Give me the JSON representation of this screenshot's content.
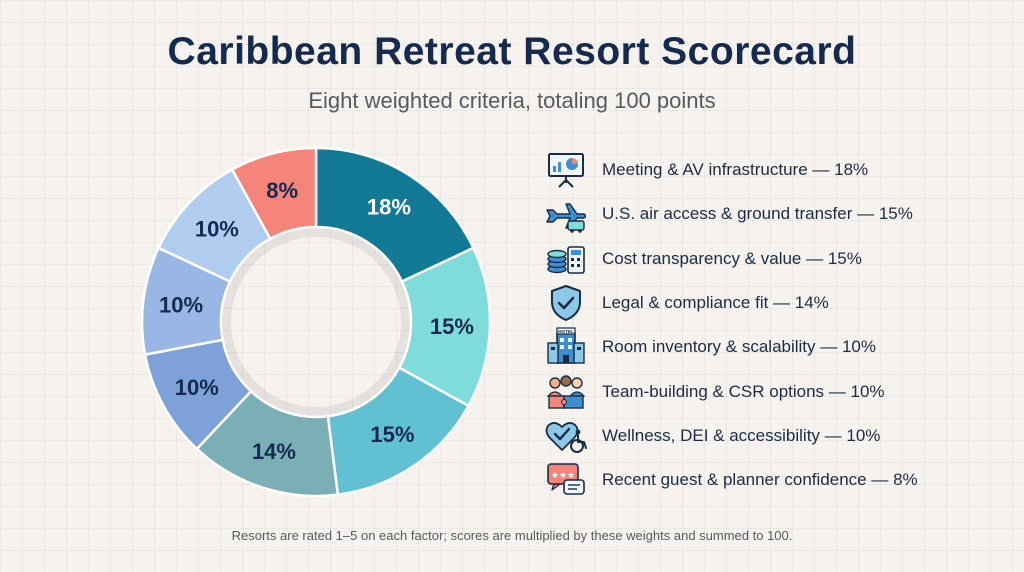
{
  "title": "Caribbean Retreat Resort Scorecard",
  "subtitle": "Eight weighted criteria, totaling 100 points",
  "footnote": "Resorts are rated 1–5 on each factor; scores are multiplied by these weights and summed to 100.",
  "chart_data": {
    "type": "pie",
    "variant": "donut",
    "title": "Caribbean Retreat Resort Scorecard",
    "subtitle": "Eight weighted criteria, totaling 100 points",
    "start": "top, clockwise",
    "slices": [
      {
        "name": "Meeting & AV infrastructure",
        "value": 18,
        "label": "18%",
        "color": "#137a95",
        "text_color": "#ffffff"
      },
      {
        "name": "U.S. air access & ground transfer",
        "value": 15,
        "label": "15%",
        "color": "#7fdcdb",
        "text_color": "#142a4f"
      },
      {
        "name": "Cost transparency & value",
        "value": 15,
        "label": "15%",
        "color": "#62c0d3",
        "text_color": "#142a4f"
      },
      {
        "name": "Legal & compliance fit",
        "value": 14,
        "label": "14%",
        "color": "#7aafb6",
        "text_color": "#142a4f"
      },
      {
        "name": "Room inventory & scalability",
        "value": 10,
        "label": "10%",
        "color": "#7da1d8",
        "text_color": "#142a4f"
      },
      {
        "name": "Team-building & CSR options",
        "value": 10,
        "label": "10%",
        "color": "#99b7e4",
        "text_color": "#142a4f"
      },
      {
        "name": "Wellness, DEI & accessibility",
        "value": 10,
        "label": "10%",
        "color": "#b0cdf0",
        "text_color": "#142a4f"
      },
      {
        "name": "Recent guest & planner confidence",
        "value": 8,
        "label": "8%",
        "color": "#f5847a",
        "text_color": "#142a4f"
      }
    ]
  },
  "legend": [
    {
      "text": "Meeting & AV infrastructure — 18%",
      "icon": "presentation-board-icon"
    },
    {
      "text": "U.S. air access & ground transfer — 15%",
      "icon": "airplane-shuttle-icon"
    },
    {
      "text": "Cost transparency & value — 15%",
      "icon": "coins-calculator-icon"
    },
    {
      "text": "Legal & compliance fit — 14%",
      "icon": "shield-check-icon"
    },
    {
      "text": "Room inventory & scalability — 10%",
      "icon": "hotel-building-icon"
    },
    {
      "text": "Team-building & CSR options — 10%",
      "icon": "team-puzzle-icon"
    },
    {
      "text": "Wellness, DEI & accessibility — 10%",
      "icon": "heart-accessibility-icon"
    },
    {
      "text": "Recent guest & planner confidence — 8%",
      "icon": "review-stars-icon"
    }
  ],
  "icon_badge": "HOTEL"
}
